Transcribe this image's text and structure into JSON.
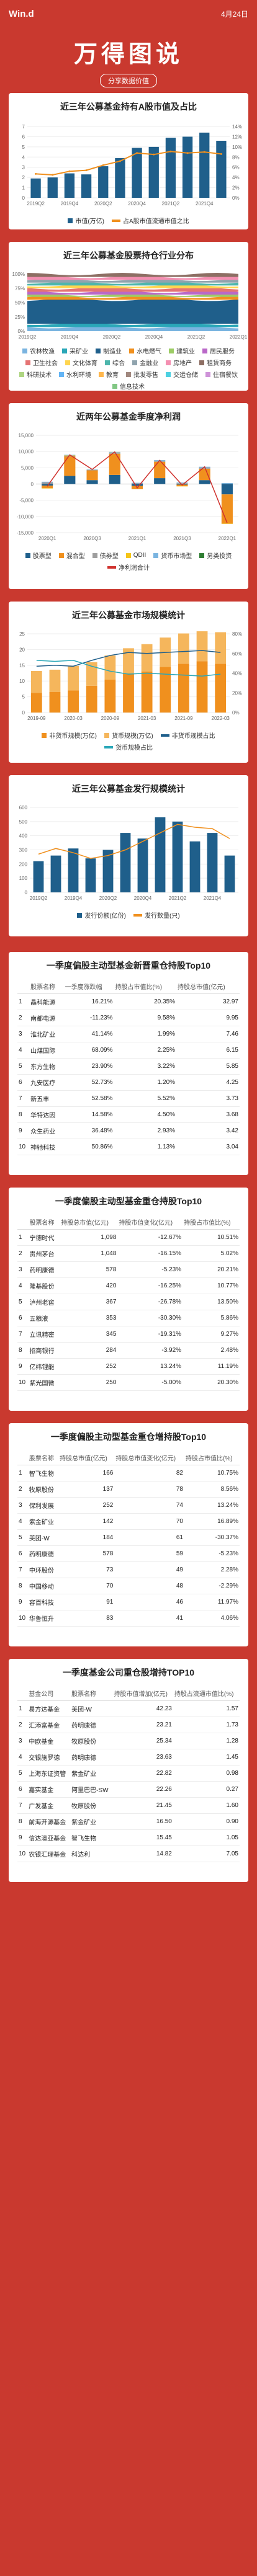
{
  "header": {
    "logo": "Win.d",
    "date": "4月24日"
  },
  "hero": {
    "title": "万得图说",
    "subtitle": "分享数据价值"
  },
  "sections": {
    "s1": "近三年公募基金持有A股市值及占比",
    "s2": "近三年公募基金股票持仓行业分布",
    "s3": "近两年公募基金季度净利润",
    "s4": "近三年公募基金市场规模统计",
    "s5": "近三年公募基金发行规模统计",
    "t1": "一季度偏股主动型基金新晋重仓持股Top10",
    "t2": "一季度偏股主动型基金重仓持股Top10",
    "t3": "一季度偏股主动型基金重仓增持股Top10",
    "t4": "一季度基金公司重仓股增持TOP10"
  },
  "chart_data": [
    {
      "type": "bar",
      "title": "近三年公募基金持有A股市值及占比",
      "categories": [
        "2019Q2",
        "2019Q3",
        "2019Q4",
        "2020Q1",
        "2020Q2",
        "2020Q3",
        "2020Q4",
        "2021Q1",
        "2021Q2",
        "2021Q3",
        "2021Q4",
        "2022Q1"
      ],
      "series": [
        {
          "name": "市值(万亿)",
          "values": [
            1.9,
            2.0,
            2.4,
            2.3,
            3.1,
            3.9,
            4.9,
            5.0,
            5.9,
            6.0,
            6.4,
            5.6
          ]
        },
        {
          "name": "占A股市值流通市值之比",
          "values": [
            4.7,
            4.5,
            5.2,
            5.4,
            6.4,
            7.2,
            8.8,
            8.5,
            9.1,
            8.8,
            9.0,
            8.6
          ]
        }
      ],
      "ylim": [
        0,
        7
      ],
      "y2lim": [
        0,
        14
      ]
    },
    {
      "type": "area",
      "title": "近三年公募基金股票持仓行业分布",
      "categories": [
        "2019Q2",
        "2019Q4",
        "2020Q2",
        "2020Q4",
        "2021Q2",
        "2022Q1"
      ],
      "series": [
        {
          "name": "农林牧渔"
        },
        {
          "name": "采矿业"
        },
        {
          "name": "制造业"
        },
        {
          "name": "水电燃气"
        },
        {
          "name": "建筑业"
        },
        {
          "name": "居民服务"
        },
        {
          "name": "卫生社会"
        },
        {
          "name": "文化体育"
        },
        {
          "name": "综合"
        },
        {
          "name": "金融业"
        },
        {
          "name": "房地产"
        },
        {
          "name": "租赁商务"
        },
        {
          "name": "科研技术"
        },
        {
          "name": "水利环境"
        },
        {
          "name": "教育"
        },
        {
          "name": "批发零售"
        },
        {
          "name": "交运仓储"
        },
        {
          "name": "住宿餐饮"
        },
        {
          "name": "信息技术"
        }
      ]
    },
    {
      "type": "bar",
      "title": "近两年公募基金季度净利润",
      "categories": [
        "2020Q1",
        "2020Q2",
        "2020Q3",
        "2020Q4",
        "2021Q1",
        "2021Q2",
        "2021Q3",
        "2021Q4",
        "2022Q1"
      ],
      "series": [
        {
          "name": "股票型",
          "values": [
            -500,
            2500,
            1200,
            2800,
            -600,
            1800,
            -200,
            1200,
            -3200
          ]
        },
        {
          "name": "混合型",
          "values": [
            -800,
            6000,
            3000,
            6500,
            -1000,
            5000,
            -500,
            3500,
            -9000
          ]
        },
        {
          "name": "债券型",
          "values": [
            500,
            200,
            100,
            300,
            200,
            300,
            250,
            400,
            100
          ]
        },
        {
          "name": "QDII",
          "values": [
            -100,
            100,
            50,
            100,
            0,
            50,
            -50,
            0,
            -100
          ]
        },
        {
          "name": "货币市场型",
          "values": [
            200,
            180,
            160,
            170,
            180,
            190,
            200,
            210,
            200
          ]
        },
        {
          "name": "另类投资",
          "values": [
            0,
            10,
            5,
            10,
            -5,
            5,
            5,
            0,
            -5
          ]
        },
        {
          "name": "净利润合计",
          "values": [
            -700,
            9000,
            4500,
            9900,
            -1200,
            7300,
            -300,
            5300,
            -12000
          ]
        }
      ],
      "ylim": [
        -15000,
        15000
      ]
    },
    {
      "type": "bar",
      "title": "近三年公募基金市场规模统计",
      "categories": [
        "2019-09",
        "2019-12",
        "2020-03",
        "2020-06",
        "2020-09",
        "2020-12",
        "2021-03",
        "2021-06",
        "2021-09",
        "2021-12",
        "2022-03"
      ],
      "series": [
        {
          "name": "非货币规模(万亿)",
          "values": [
            6.2,
            6.5,
            7.0,
            8.5,
            10.5,
            12.4,
            13.0,
            14.5,
            15.5,
            16.3,
            15.5
          ]
        },
        {
          "name": "货币规模(万亿)",
          "values": [
            7.0,
            7.1,
            7.8,
            7.5,
            7.6,
            8.0,
            8.7,
            9.3,
            9.6,
            9.5,
            10.0
          ]
        },
        {
          "name": "非货币规模占比",
          "values": [
            47,
            48,
            47,
            53,
            58,
            61,
            60,
            61,
            62,
            63,
            61
          ]
        },
        {
          "name": "货币规模占比",
          "values": [
            53,
            52,
            53,
            47,
            42,
            39,
            40,
            39,
            38,
            37,
            39
          ]
        }
      ],
      "ylim": [
        0,
        25
      ],
      "y2lim": [
        0,
        80
      ]
    },
    {
      "type": "bar",
      "title": "近三年公募基金发行规模统计",
      "categories": [
        "2019Q2",
        "2019Q3",
        "2019Q4",
        "2020Q1",
        "2020Q2",
        "2020Q3",
        "2020Q4",
        "2021Q1",
        "2021Q2",
        "2021Q3",
        "2021Q4",
        "2022Q1"
      ],
      "series": [
        {
          "name": "发行份额(亿份)",
          "values": [
            220,
            260,
            310,
            240,
            300,
            420,
            380,
            530,
            500,
            360,
            420,
            260
          ]
        },
        {
          "name": "发行数量(只)",
          "values": [
            270,
            310,
            280,
            240,
            260,
            300,
            360,
            420,
            480,
            460,
            450,
            380
          ]
        }
      ],
      "ylim": [
        0,
        600
      ]
    }
  ],
  "tables": {
    "t1": {
      "headers": [
        "",
        "股票名称",
        "一季度涨跌幅",
        "持股占市值比(%)",
        "持股总市值(亿元)"
      ],
      "rows": [
        [
          "1",
          "晶科能源",
          "16.21%",
          "20.35%",
          "32.97"
        ],
        [
          "2",
          "南都电源",
          "-11.23%",
          "9.58%",
          "9.95"
        ],
        [
          "3",
          "淮北矿业",
          "41.14%",
          "1.99%",
          "7.46"
        ],
        [
          "4",
          "山煤国际",
          "68.09%",
          "2.25%",
          "6.15"
        ],
        [
          "5",
          "东方生物",
          "23.90%",
          "3.22%",
          "5.85"
        ],
        [
          "6",
          "九安医疗",
          "52.73%",
          "1.20%",
          "4.25"
        ],
        [
          "7",
          "新五丰",
          "52.58%",
          "5.52%",
          "3.73"
        ],
        [
          "8",
          "华特达因",
          "14.58%",
          "4.50%",
          "3.68"
        ],
        [
          "9",
          "众生药业",
          "36.48%",
          "2.93%",
          "3.42"
        ],
        [
          "10",
          "神驰科技",
          "50.86%",
          "1.13%",
          "3.04"
        ]
      ]
    },
    "t2": {
      "headers": [
        "",
        "股票名称",
        "持股总市值(亿元)",
        "持股市值变化(亿元)",
        "持股占市值比(%)"
      ],
      "rows": [
        [
          "1",
          "宁德时代",
          "1,098",
          "-12.67%",
          "10.51%"
        ],
        [
          "2",
          "贵州茅台",
          "1,048",
          "-16.15%",
          "5.02%"
        ],
        [
          "3",
          "药明康德",
          "578",
          "-5.23%",
          "20.21%"
        ],
        [
          "4",
          "隆基股份",
          "420",
          "-16.25%",
          "10.77%"
        ],
        [
          "5",
          "泸州老窖",
          "367",
          "-26.78%",
          "13.50%"
        ],
        [
          "6",
          "五粮液",
          "353",
          "-30.30%",
          "5.86%"
        ],
        [
          "7",
          "立讯精密",
          "345",
          "-19.31%",
          "9.27%"
        ],
        [
          "8",
          "招商银行",
          "284",
          "-3.92%",
          "2.48%"
        ],
        [
          "9",
          "亿纬锂能",
          "252",
          "13.24%",
          "11.19%"
        ],
        [
          "10",
          "紫光国微",
          "250",
          "-5.00%",
          "20.30%"
        ]
      ]
    },
    "t3": {
      "headers": [
        "",
        "股票名称",
        "持股总市值(亿元)",
        "持股总市值变化(亿元)",
        "持股占市值比(%)"
      ],
      "rows": [
        [
          "1",
          "智飞生物",
          "166",
          "82",
          "10.75%"
        ],
        [
          "2",
          "牧原股份",
          "137",
          "78",
          "8.56%"
        ],
        [
          "3",
          "保利发展",
          "252",
          "74",
          "13.24%"
        ],
        [
          "4",
          "紫金矿业",
          "142",
          "70",
          "16.89%"
        ],
        [
          "5",
          "美团-W",
          "184",
          "61",
          "-30.37%"
        ],
        [
          "6",
          "药明康德",
          "578",
          "59",
          "-5.23%"
        ],
        [
          "7",
          "中环股份",
          "73",
          "49",
          "2.28%"
        ],
        [
          "8",
          "中国移动",
          "70",
          "48",
          "-2.29%"
        ],
        [
          "9",
          "容百科技",
          "91",
          "46",
          "11.97%"
        ],
        [
          "10",
          "华鲁恒升",
          "83",
          "41",
          "4.06%"
        ]
      ]
    },
    "t4": {
      "headers": [
        "",
        "基金公司",
        "股票名称",
        "持股市值增加(亿元)",
        "持股占流通市值比(%)"
      ],
      "rows": [
        [
          "1",
          "易方达基金",
          "美团-W",
          "42.23",
          "1.57"
        ],
        [
          "2",
          "汇添富基金",
          "药明康德",
          "23.21",
          "1.73"
        ],
        [
          "3",
          "中欧基金",
          "牧原股份",
          "25.34",
          "1.28"
        ],
        [
          "4",
          "交银施罗德",
          "药明康德",
          "23.63",
          "1.45"
        ],
        [
          "5",
          "上海东证资管",
          "紫金矿业",
          "22.82",
          "0.98"
        ],
        [
          "6",
          "嘉实基金",
          "阿里巴巴-SW",
          "22.26",
          "0.27"
        ],
        [
          "7",
          "广发基金",
          "牧原股份",
          "21.45",
          "1.60"
        ],
        [
          "8",
          "前海开源基金",
          "紫金矿业",
          "16.50",
          "0.90"
        ],
        [
          "9",
          "信达澳亚基金",
          "智飞生物",
          "15.45",
          "1.05"
        ],
        [
          "10",
          "农银汇理基金",
          "科达利",
          "14.82",
          "7.05"
        ]
      ]
    }
  },
  "colors": {
    "bg": "#c9392f",
    "bar": "#1f5f8b",
    "orange": "#f0901e",
    "teal": "#2aa7b8",
    "red": "#d0312d",
    "green": "#1e9f4e"
  }
}
